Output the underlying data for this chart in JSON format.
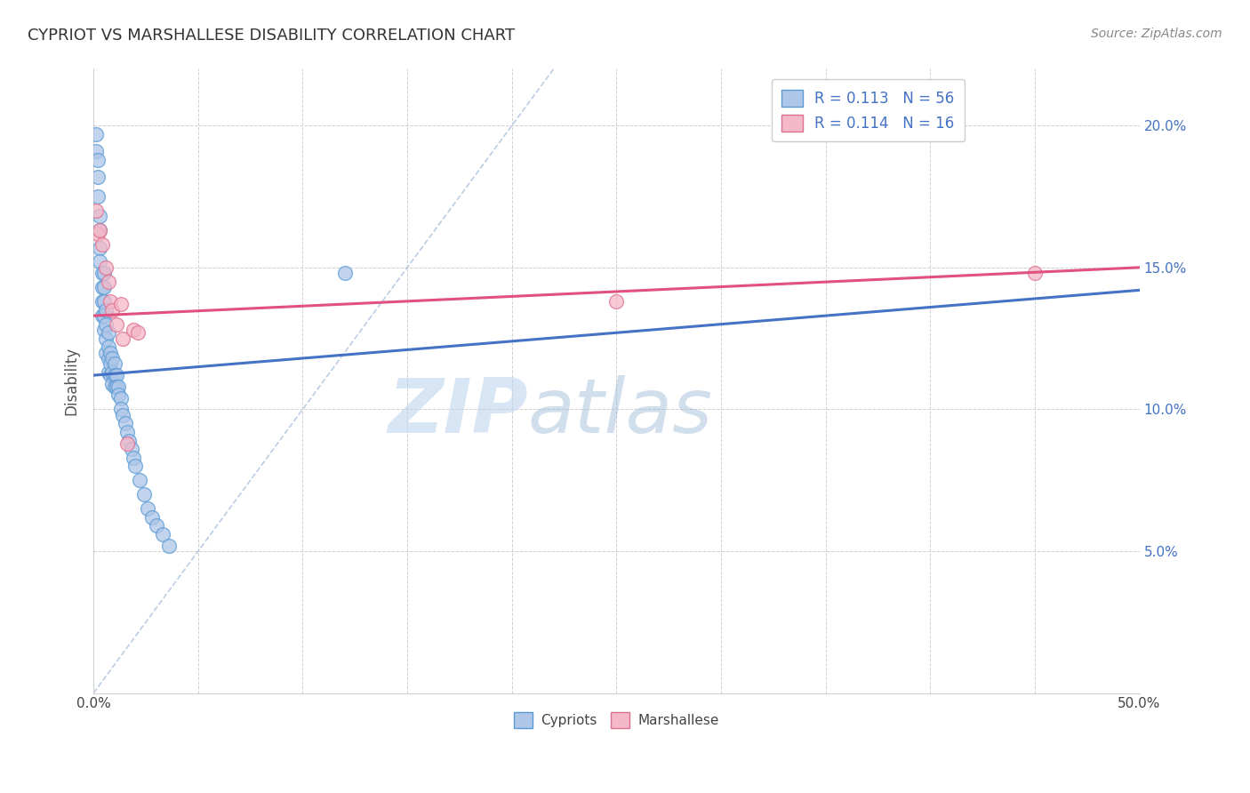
{
  "title": "CYPRIOT VS MARSHALLESE DISABILITY CORRELATION CHART",
  "source": "Source: ZipAtlas.com",
  "ylabel": "Disability",
  "xlim": [
    0.0,
    0.5
  ],
  "ylim": [
    0.0,
    0.22
  ],
  "xtick_pos": [
    0.0,
    0.05,
    0.1,
    0.15,
    0.2,
    0.25,
    0.3,
    0.35,
    0.4,
    0.45,
    0.5
  ],
  "xtick_labels": [
    "0.0%",
    "",
    "",
    "",
    "",
    "",
    "",
    "",
    "",
    "",
    "50.0%"
  ],
  "ytick_pos": [
    0.05,
    0.1,
    0.15,
    0.2
  ],
  "ytick_labels": [
    "5.0%",
    "10.0%",
    "15.0%",
    "20.0%"
  ],
  "cypriot_color": "#aec6e8",
  "cypriot_edge": "#5b9bd5",
  "marshallese_color": "#f4b8c8",
  "marshallese_edge": "#e07090",
  "trend_cypriot_color": "#4472c4",
  "trend_marshallese_color": "#e05080",
  "diagonal_color": "#b0c4de",
  "background": "#ffffff",
  "cypriot_x": [
    0.001,
    0.001,
    0.002,
    0.002,
    0.002,
    0.003,
    0.003,
    0.003,
    0.003,
    0.004,
    0.004,
    0.004,
    0.004,
    0.005,
    0.005,
    0.005,
    0.005,
    0.005,
    0.006,
    0.006,
    0.006,
    0.006,
    0.007,
    0.007,
    0.007,
    0.007,
    0.008,
    0.008,
    0.008,
    0.009,
    0.009,
    0.009,
    0.01,
    0.01,
    0.01,
    0.011,
    0.011,
    0.012,
    0.012,
    0.013,
    0.013,
    0.014,
    0.015,
    0.016,
    0.017,
    0.018,
    0.019,
    0.02,
    0.022,
    0.024,
    0.026,
    0.028,
    0.03,
    0.033,
    0.036,
    0.12
  ],
  "cypriot_y": [
    0.197,
    0.191,
    0.188,
    0.182,
    0.175,
    0.168,
    0.163,
    0.157,
    0.152,
    0.148,
    0.143,
    0.138,
    0.133,
    0.148,
    0.143,
    0.138,
    0.133,
    0.128,
    0.135,
    0.13,
    0.125,
    0.12,
    0.127,
    0.122,
    0.118,
    0.113,
    0.12,
    0.116,
    0.112,
    0.118,
    0.113,
    0.109,
    0.116,
    0.112,
    0.108,
    0.112,
    0.108,
    0.108,
    0.105,
    0.104,
    0.1,
    0.098,
    0.095,
    0.092,
    0.089,
    0.086,
    0.083,
    0.08,
    0.075,
    0.07,
    0.065,
    0.062,
    0.059,
    0.056,
    0.052,
    0.148
  ],
  "marshallese_x": [
    0.001,
    0.002,
    0.003,
    0.004,
    0.006,
    0.007,
    0.008,
    0.009,
    0.011,
    0.013,
    0.014,
    0.016,
    0.019,
    0.021,
    0.25,
    0.45
  ],
  "marshallese_y": [
    0.17,
    0.162,
    0.163,
    0.158,
    0.15,
    0.145,
    0.138,
    0.135,
    0.13,
    0.137,
    0.125,
    0.088,
    0.128,
    0.127,
    0.138,
    0.148
  ],
  "trend_cyp_x0": 0.0,
  "trend_cyp_x1": 0.5,
  "trend_cyp_y0": 0.112,
  "trend_cyp_y1": 0.142,
  "trend_mar_x0": 0.0,
  "trend_mar_x1": 0.5,
  "trend_mar_y0": 0.133,
  "trend_mar_y1": 0.15
}
